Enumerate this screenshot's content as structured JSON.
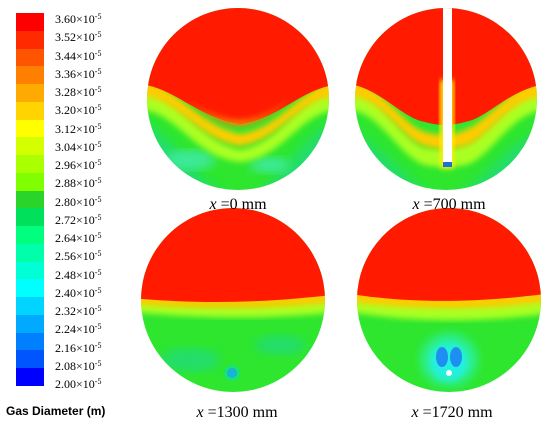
{
  "colorbar": {
    "title": "Gas Diameter (m)",
    "labels": [
      "3.60×10",
      "3.52×10",
      "3.44×10",
      "3.36×10",
      "3.28×10",
      "3.20×10",
      "3.12×10",
      "3.04×10",
      "2.96×10",
      "2.88×10",
      "2.80×10",
      "2.72×10",
      "2.64×10",
      "2.56×10",
      "2.48×10",
      "2.40×10",
      "2.32×10",
      "2.24×10",
      "2.16×10",
      "2.08×10",
      "2.00×10"
    ],
    "exponent": "-5",
    "colors": [
      "#ff0000",
      "#ff2a00",
      "#ff5500",
      "#ff7f00",
      "#ffaa00",
      "#ffd400",
      "#ffff00",
      "#d4ff00",
      "#aaff00",
      "#7fff00",
      "#2ad42a",
      "#00e05a",
      "#00ff7f",
      "#00ffaa",
      "#00ffd4",
      "#00ffff",
      "#00d4ff",
      "#00aaff",
      "#007fff",
      "#0055ff",
      "#0000ff"
    ]
  },
  "panels": [
    {
      "var": "x",
      "text": " =0 mm"
    },
    {
      "var": "x",
      "text": " =700 mm"
    },
    {
      "var": "x",
      "text": " =1300 mm"
    },
    {
      "var": "x",
      "text": " =1720 mm"
    }
  ]
}
